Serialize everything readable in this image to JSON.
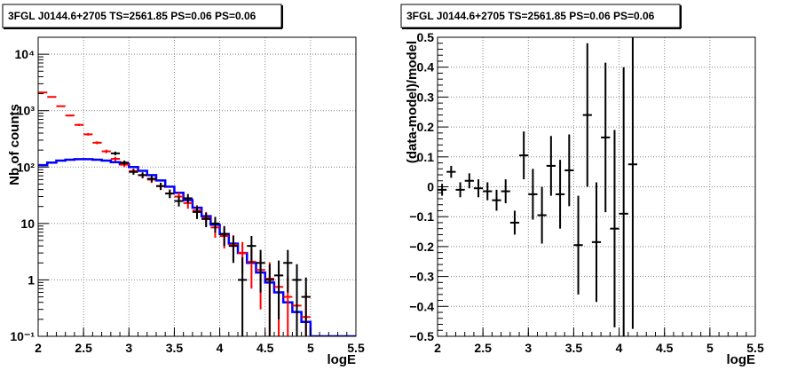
{
  "chart_data": [
    {
      "type": "line",
      "title": "3FGL J0144.6+2705 TS=2561.85 PS=0.06 PS=0.06",
      "xlabel": "logE",
      "ylabel": "Nb of counts",
      "xlim": [
        2,
        5.5
      ],
      "ylim": [
        0.1,
        20000
      ],
      "yscale": "log",
      "grid": true,
      "x_ticks": [
        "2",
        "2.5",
        "3",
        "3.5",
        "4",
        "4.5",
        "5",
        "5.5"
      ],
      "y_ticks": [
        "10⁻¹",
        "1",
        "10",
        "10²",
        "10³",
        "10⁴"
      ],
      "series": [
        {
          "color": "#0000ff",
          "style": "histogram",
          "bin_edges": [
            2.0,
            2.1,
            2.2,
            2.3,
            2.4,
            2.5,
            2.6,
            2.7,
            2.8,
            2.9,
            3.0,
            3.1,
            3.2,
            3.3,
            3.4,
            3.5,
            3.6,
            3.7,
            3.8,
            3.9,
            4.0,
            4.1,
            4.2,
            4.3,
            4.4,
            4.5,
            4.6,
            4.7,
            4.8,
            4.9,
            5.0,
            5.1,
            5.2,
            5.3,
            5.4,
            5.5
          ],
          "values": [
            108,
            120,
            130,
            135,
            138,
            138,
            135,
            130,
            122,
            112,
            100,
            86,
            72,
            58,
            45,
            35,
            26,
            19,
            13.5,
            9.5,
            6.5,
            4.4,
            3.0,
            2.0,
            1.35,
            0.9,
            0.6,
            0.4,
            0.27,
            0.18,
            0.1,
            0.1,
            0.1,
            0.1,
            0.1
          ]
        },
        {
          "color": "#ff0000",
          "style": "errorbar",
          "x": [
            2.05,
            2.15,
            2.25,
            2.35,
            2.45,
            2.55,
            2.65,
            2.75,
            2.85,
            2.95,
            3.05,
            3.15,
            3.25,
            3.35,
            3.45,
            3.55,
            3.65,
            3.75,
            3.85,
            3.95,
            4.05,
            4.15,
            4.25,
            4.35,
            4.45,
            4.55,
            4.65,
            4.75,
            4.85,
            4.95
          ],
          "y": [
            2100,
            1750,
            1200,
            820,
            560,
            380,
            270,
            190,
            140,
            110,
            85,
            72,
            60,
            46,
            34,
            30,
            23,
            17,
            12.5,
            8.5,
            6,
            4.2,
            3.0,
            2.1,
            1.5,
            1.05,
            0.75,
            0.5,
            0.35,
            0.22
          ],
          "yerr_low": [
            46,
            42,
            35,
            29,
            24,
            19,
            16,
            14,
            12,
            10.5,
            9,
            8.5,
            7.7,
            6.8,
            5.8,
            5.5,
            4.8,
            4.1,
            3.5,
            2.9,
            2.4,
            2.0,
            1.7,
            1.4,
            1.2,
            1.0,
            0.8,
            0.65,
            0.33,
            0.2
          ],
          "yerr_high": [
            46,
            42,
            35,
            29,
            24,
            19,
            16,
            14,
            12,
            10.5,
            9,
            8.5,
            7.7,
            6.8,
            5.8,
            5.5,
            4.8,
            4.1,
            3.5,
            2.9,
            2.4,
            2.0,
            1.7,
            1.4,
            1.2,
            1.0,
            0.8,
            0.65,
            0.5,
            0.4
          ]
        },
        {
          "color": "#000000",
          "style": "errorbar",
          "x": [
            2.85,
            2.95,
            3.05,
            3.15,
            3.25,
            3.35,
            3.45,
            3.55,
            3.65,
            3.75,
            3.85,
            3.95,
            4.05,
            4.15,
            4.25,
            4.35,
            4.45,
            4.55,
            4.65,
            4.75,
            4.85,
            4.95
          ],
          "y": [
            175,
            120,
            82,
            72,
            62,
            46,
            34,
            25,
            28,
            16,
            12,
            10,
            6.5,
            4,
            1,
            4,
            2,
            1,
            1.2,
            2,
            1,
            0.5
          ],
          "yerr_low": [
            13,
            11,
            9,
            8.5,
            7.9,
            6.8,
            5.8,
            5,
            5.3,
            4,
            3.4,
            3.1,
            2.5,
            2,
            0.9,
            2,
            1.4,
            0.9,
            1,
            1.4,
            0.9,
            0.4
          ],
          "yerr_high": [
            13,
            11,
            9,
            8.5,
            7.9,
            6.8,
            5.8,
            5,
            5.3,
            4,
            3.4,
            3.1,
            2.5,
            2,
            1.5,
            2,
            1.4,
            0.9,
            1,
            1.4,
            0.9,
            0.6
          ]
        }
      ]
    },
    {
      "type": "scatter",
      "title": "3FGL J0144.6+2705 TS=2561.85 PS=0.06 PS=0.06",
      "xlabel": "logE",
      "ylabel": "(data-model)/model",
      "xlim": [
        2,
        5.5
      ],
      "ylim": [
        -0.5,
        0.5
      ],
      "grid": true,
      "x_ticks": [
        "2",
        "2.5",
        "3",
        "3.5",
        "4",
        "4.5",
        "5",
        "5.5"
      ],
      "y_ticks": [
        "−0.5",
        "−0.4",
        "−0.3",
        "−0.2",
        "−0.1",
        "0",
        "0.1",
        "0.2",
        "0.3",
        "0.4",
        "0.5"
      ],
      "series": [
        {
          "color": "#000000",
          "style": "errorbar",
          "x": [
            2.05,
            2.15,
            2.25,
            2.35,
            2.45,
            2.55,
            2.65,
            2.75,
            2.85,
            2.95,
            3.05,
            3.15,
            3.25,
            3.35,
            3.45,
            3.55,
            3.65,
            3.75,
            3.85,
            3.95,
            4.05,
            4.15
          ],
          "y": [
            -0.01,
            0.05,
            -0.01,
            0.02,
            -0.005,
            -0.015,
            -0.045,
            -0.015,
            -0.12,
            0.105,
            -0.025,
            -0.095,
            0.07,
            -0.025,
            0.055,
            -0.195,
            0.24,
            -0.185,
            0.165,
            -0.14,
            -0.09,
            0.075
          ],
          "yerr": [
            0.02,
            0.02,
            0.025,
            0.025,
            0.03,
            0.03,
            0.035,
            0.04,
            0.04,
            0.08,
            0.085,
            0.095,
            0.1,
            0.115,
            0.12,
            0.165,
            0.24,
            0.2,
            0.25,
            0.33,
            0.49,
            0.55
          ]
        }
      ]
    }
  ]
}
